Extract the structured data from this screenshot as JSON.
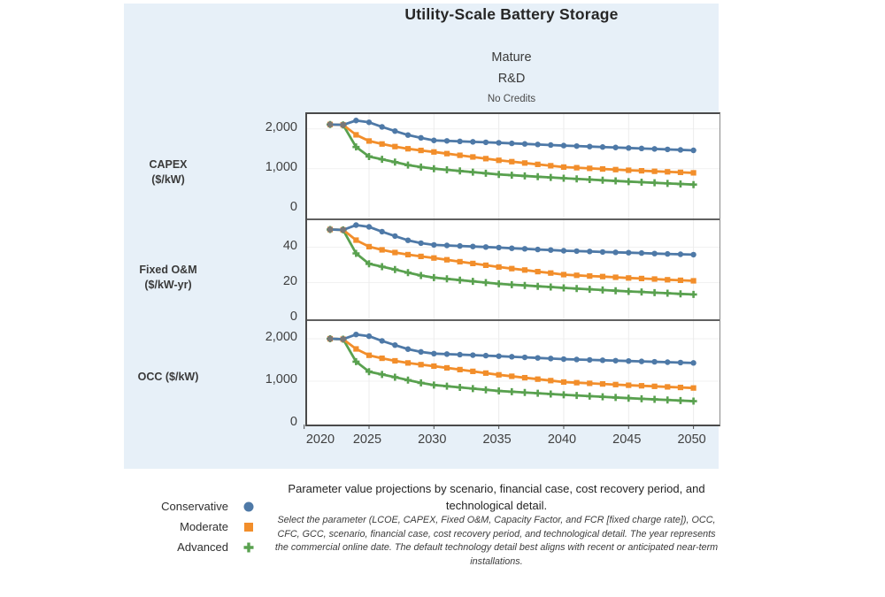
{
  "title": "Utility-Scale Battery Storage",
  "headers": {
    "case_label": "Mature",
    "scenario_label": "R&D",
    "credit_label": "No Credits"
  },
  "legend": [
    {
      "label": "Conservative",
      "marker": "circle",
      "color": "#4e79a7"
    },
    {
      "label": "Moderate",
      "marker": "square",
      "color": "#f28e2b"
    },
    {
      "label": "Advanced",
      "marker": "plus",
      "color": "#59a14f"
    }
  ],
  "caption": {
    "heading": "Parameter value projections by scenario, financial case, cost recovery period, and technological detail.",
    "body": "Select the parameter (LCOE, CAPEX, Fixed O&M, Capacity Factor, and FCR [fixed charge rate]), OCC, CFC, GCC, scenario, financial case, cost recovery period, and technological detail. The year represents the commercial online date. The default technology detail best aligns with recent or anticipated near-term installations."
  },
  "chart_data": {
    "type": "line",
    "x_label": "",
    "x_years": [
      2022,
      2023,
      2024,
      2025,
      2026,
      2027,
      2028,
      2029,
      2030,
      2031,
      2032,
      2033,
      2034,
      2035,
      2036,
      2037,
      2038,
      2039,
      2040,
      2041,
      2042,
      2043,
      2044,
      2045,
      2046,
      2047,
      2048,
      2049,
      2050
    ],
    "x_tick_years": [
      2020,
      2025,
      2030,
      2035,
      2040,
      2045,
      2050
    ],
    "x_tick_labels": [
      "2020",
      "2025",
      "2030",
      "2035",
      "2040",
      "2045",
      "2050"
    ],
    "historical_overlap_years": [
      2022,
      2023
    ],
    "historical_marker_color": "#787878",
    "grid": "on",
    "panels": [
      {
        "name": "CAPEX",
        "label_lines": [
          "CAPEX",
          "($/kW)"
        ],
        "unit": "$/kW",
        "ylim": [
          0,
          2370
        ],
        "yticks": [
          {
            "value": 0,
            "label": "0"
          },
          {
            "value": 1000,
            "label": "1,000"
          },
          {
            "value": 2000,
            "label": "2,000"
          }
        ],
        "series": [
          {
            "name": "Conservative",
            "values": [
              2110,
              2100,
              2210,
              2165,
              2050,
              1945,
              1845,
              1775,
              1710,
              1698,
              1686,
              1674,
              1662,
              1650,
              1636,
              1622,
              1608,
              1594,
              1580,
              1568,
              1556,
              1544,
              1532,
              1520,
              1508,
              1496,
              1484,
              1472,
              1460
            ]
          },
          {
            "name": "Moderate",
            "values": [
              2110,
              2100,
              1850,
              1695,
              1620,
              1555,
              1500,
              1458,
              1420,
              1378,
              1336,
              1294,
              1252,
              1210,
              1176,
              1142,
              1108,
              1074,
              1040,
              1024,
              1008,
              992,
              976,
              960,
              947,
              934,
              921,
              908,
              895
            ]
          },
          {
            "name": "Advanced",
            "values": [
              2110,
              2100,
              1545,
              1305,
              1235,
              1165,
              1090,
              1040,
              1000,
              971,
              942,
              913,
              884,
              855,
              836,
              817,
              798,
              779,
              760,
              743,
              726,
              709,
              692,
              675,
              660,
              645,
              630,
              615,
              600
            ]
          }
        ]
      },
      {
        "name": "Fixed O&M",
        "label_lines": [
          "Fixed O&M",
          "($/kW-yr)"
        ],
        "unit": "$/kW-yr",
        "ylim": [
          0,
          56
        ],
        "yticks": [
          {
            "value": 0,
            "label": "0"
          },
          {
            "value": 20,
            "label": "20"
          },
          {
            "value": 40,
            "label": "40"
          }
        ],
        "series": [
          {
            "name": "Conservative",
            "values": [
              50.0,
              49.8,
              52.5,
              51.5,
              48.8,
              46.3,
              43.9,
              42.3,
              41.3,
              41.0,
              40.7,
              40.4,
              40.1,
              39.8,
              39.4,
              39.1,
              38.7,
              38.4,
              38.0,
              37.8,
              37.6,
              37.3,
              37.1,
              36.9,
              36.7,
              36.4,
              36.2,
              36.0,
              35.8
            ]
          },
          {
            "name": "Moderate",
            "values": [
              50.0,
              49.8,
              44.0,
              40.3,
              38.5,
              37.0,
              35.8,
              34.8,
              33.9,
              32.9,
              31.8,
              30.8,
              29.8,
              28.8,
              27.9,
              27.1,
              26.2,
              25.4,
              24.5,
              24.1,
              23.7,
              23.4,
              23.0,
              22.6,
              22.3,
              22.0,
              21.6,
              21.3,
              21.0
            ]
          },
          {
            "name": "Advanced",
            "values": [
              50.0,
              49.8,
              36.5,
              30.6,
              29.0,
              27.4,
              25.6,
              24.0,
              22.8,
              22.1,
              21.4,
              20.7,
              20.0,
              19.3,
              18.8,
              18.4,
              17.9,
              17.5,
              17.0,
              16.6,
              16.2,
              15.8,
              15.4,
              15.0,
              14.7,
              14.3,
              14.0,
              13.6,
              13.3
            ]
          }
        ]
      },
      {
        "name": "OCC",
        "label_lines": [
          "OCC ($/kW)"
        ],
        "unit": "$/kW",
        "ylim": [
          0,
          2440
        ],
        "yticks": [
          {
            "value": 0,
            "label": "0"
          },
          {
            "value": 1000,
            "label": "1,000"
          },
          {
            "value": 2000,
            "label": "2,000"
          }
        ],
        "series": [
          {
            "name": "Conservative",
            "values": [
              2000,
              1990,
              2100,
              2060,
              1950,
              1850,
              1755,
              1690,
              1650,
              1638,
              1626,
              1614,
              1602,
              1590,
              1576,
              1562,
              1548,
              1534,
              1520,
              1511,
              1502,
              1493,
              1484,
              1475,
              1466,
              1457,
              1448,
              1439,
              1430
            ]
          },
          {
            "name": "Moderate",
            "values": [
              2000,
              1990,
              1760,
              1610,
              1540,
              1480,
              1430,
              1390,
              1355,
              1314,
              1273,
              1232,
              1191,
              1150,
              1116,
              1082,
              1048,
              1014,
              980,
              965,
              950,
              935,
              920,
              905,
              892,
              879,
              866,
              853,
              840
            ]
          },
          {
            "name": "Advanced",
            "values": [
              2000,
              1990,
              1460,
              1225,
              1160,
              1095,
              1025,
              960,
              910,
              882,
              854,
              826,
              798,
              770,
              752,
              734,
              716,
              698,
              680,
              664,
              648,
              632,
              616,
              600,
              586,
              572,
              558,
              544,
              530
            ]
          }
        ]
      }
    ]
  },
  "colors": {
    "figure_background": "#e7f0f8",
    "plot_background": "#ffffff",
    "axis_line": "#4a4a4a",
    "gridline": "#ececec",
    "conservative": "#4e79a7",
    "moderate": "#f28e2b",
    "advanced": "#59a14f"
  }
}
